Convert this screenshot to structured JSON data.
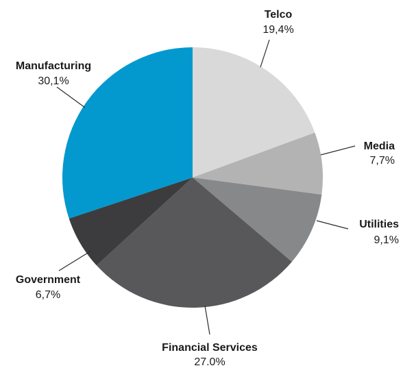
{
  "chart_data": {
    "type": "pie",
    "start_angle_deg": 0,
    "direction": "clockwise",
    "slices": [
      {
        "name": "Telco",
        "value_label": "19,4%",
        "value": 19.4,
        "color": "#d9d9da"
      },
      {
        "name": "Media",
        "value_label": "7,7%",
        "value": 7.7,
        "color": "#b3b3b4"
      },
      {
        "name": "Utilities",
        "value_label": "9,1%",
        "value": 9.1,
        "color": "#87888a"
      },
      {
        "name": "Financial Services",
        "value_label": "27.0%",
        "value": 27.0,
        "color": "#58585a"
      },
      {
        "name": "Government",
        "value_label": "6,7%",
        "value": 6.7,
        "color": "#3c3c3e"
      },
      {
        "name": "Manufacturing",
        "value_label": "30,1%",
        "value": 30.1,
        "color": "#0399cf"
      }
    ]
  }
}
